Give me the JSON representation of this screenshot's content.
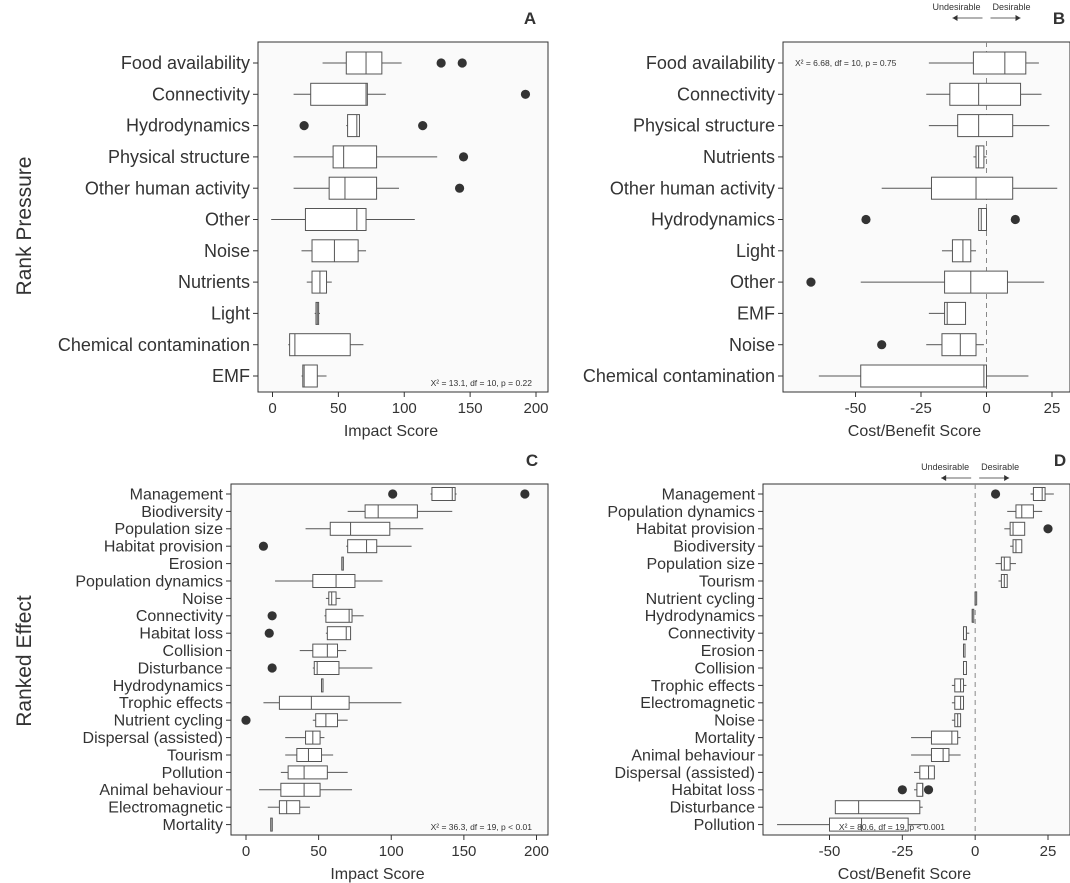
{
  "figure": {
    "row_labels": [
      "Rank Pressure",
      "Ranked Effect"
    ]
  },
  "chart_data": [
    {
      "panel": "A",
      "type": "boxplot",
      "orientation": "horizontal",
      "xlabel": "Impact Score",
      "ylabel": "Rank Pressure",
      "xlim": [
        -10,
        200
      ],
      "xticks": [
        0,
        50,
        100,
        150,
        200
      ],
      "ref_line": null,
      "annotation": "X² = 13.1, df = 10, p = 0.22",
      "items": [
        {
          "label": "Food availability",
          "whisker_low": 38,
          "q1": 56,
          "median": 71,
          "q3": 83,
          "whisker_high": 98,
          "outliers": [
            128,
            144
          ]
        },
        {
          "label": "Connectivity",
          "whisker_low": 16,
          "q1": 29,
          "median": 71,
          "q3": 72,
          "whisker_high": 86,
          "outliers": [
            192
          ]
        },
        {
          "label": "Hydrodynamics",
          "whisker_low": 56,
          "q1": 57,
          "median": 64,
          "q3": 66,
          "whisker_high": 66,
          "outliers": [
            24,
            114
          ]
        },
        {
          "label": "Physical structure",
          "whisker_low": 16,
          "q1": 46,
          "median": 54,
          "q3": 79,
          "whisker_high": 125,
          "outliers": [
            145
          ]
        },
        {
          "label": "Other human activity",
          "whisker_low": 16,
          "q1": 43,
          "median": 55,
          "q3": 79,
          "whisker_high": 96,
          "outliers": [
            142
          ]
        },
        {
          "label": "Other",
          "whisker_low": -1,
          "q1": 25,
          "median": 64,
          "q3": 71,
          "whisker_high": 108,
          "outliers": []
        },
        {
          "label": "Noise",
          "whisker_low": 22,
          "q1": 30,
          "median": 47,
          "q3": 65,
          "whisker_high": 71,
          "outliers": []
        },
        {
          "label": "Nutrients",
          "whisker_low": 26,
          "q1": 30,
          "median": 36,
          "q3": 41,
          "whisker_high": 45,
          "outliers": []
        },
        {
          "label": "Light",
          "whisker_low": 32,
          "q1": 33,
          "median": 34,
          "q3": 35,
          "whisker_high": 36,
          "outliers": []
        },
        {
          "label": "Chemical contamination",
          "whisker_low": 12,
          "q1": 13,
          "median": 17,
          "q3": 59,
          "whisker_high": 69,
          "outliers": []
        },
        {
          "label": "EMF",
          "whisker_low": 22,
          "q1": 23,
          "median": 24,
          "q3": 34,
          "whisker_high": 41,
          "outliers": []
        }
      ]
    },
    {
      "panel": "B",
      "type": "boxplot",
      "orientation": "horizontal",
      "xlabel": "Cost/Benefit Score",
      "ylabel": "",
      "xlim": [
        -70,
        30
      ],
      "xticks": [
        -50,
        -25,
        0,
        25
      ],
      "ref_line": 0,
      "direction_labels": [
        "Undesirable",
        "Desirable"
      ],
      "annotation": "X² = 6.68, df = 10, p = 0.75",
      "items": [
        {
          "label": "Food availability",
          "whisker_low": -22,
          "q1": -5,
          "median": 7,
          "q3": 15,
          "whisker_high": 20,
          "outliers": []
        },
        {
          "label": "Connectivity",
          "whisker_low": -23,
          "q1": -14,
          "median": -3,
          "q3": 13,
          "whisker_high": 21,
          "outliers": []
        },
        {
          "label": "Physical structure",
          "whisker_low": -22,
          "q1": -11,
          "median": -3,
          "q3": 10,
          "whisker_high": 24,
          "outliers": []
        },
        {
          "label": "Nutrients",
          "whisker_low": -5,
          "q1": -4,
          "median": -3,
          "q3": -1,
          "whisker_high": 0,
          "outliers": []
        },
        {
          "label": "Other human activity",
          "whisker_low": -40,
          "q1": -21,
          "median": -4,
          "q3": 10,
          "whisker_high": 27,
          "outliers": []
        },
        {
          "label": "Hydrodynamics",
          "whisker_low": -3,
          "q1": -3,
          "median": -2,
          "q3": 0,
          "whisker_high": 0,
          "outliers": [
            -46,
            11
          ]
        },
        {
          "label": "Light",
          "whisker_low": -17,
          "q1": -13,
          "median": -9,
          "q3": -6,
          "whisker_high": -4,
          "outliers": []
        },
        {
          "label": "Other",
          "whisker_low": -48,
          "q1": -16,
          "median": -6,
          "q3": 8,
          "whisker_high": 22,
          "outliers": [
            -67
          ]
        },
        {
          "label": "EMF",
          "whisker_low": -22,
          "q1": -16,
          "median": -15,
          "q3": -8,
          "whisker_high": -8,
          "outliers": []
        },
        {
          "label": "Noise",
          "whisker_low": -23,
          "q1": -17,
          "median": -10,
          "q3": -4,
          "whisker_high": -1,
          "outliers": [
            -40
          ]
        },
        {
          "label": "Chemical contamination",
          "whisker_low": -64,
          "q1": -48,
          "median": -1,
          "q3": 0,
          "whisker_high": 16,
          "outliers": []
        }
      ]
    },
    {
      "panel": "C",
      "type": "boxplot",
      "orientation": "horizontal",
      "xlabel": "Impact Score",
      "ylabel": "Ranked Effect",
      "xlim": [
        -10,
        200
      ],
      "xticks": [
        0,
        50,
        100,
        150,
        200
      ],
      "ref_line": null,
      "annotation": "X² = 36.3, df = 19, p < 0.01",
      "items": [
        {
          "label": "Management",
          "whisker_low": 127,
          "q1": 128,
          "median": 142,
          "q3": 144,
          "whisker_high": 145,
          "outliers": [
            101,
            192
          ]
        },
        {
          "label": "Biodiversity",
          "whisker_low": 70,
          "q1": 82,
          "median": 91,
          "q3": 118,
          "whisker_high": 142,
          "outliers": []
        },
        {
          "label": "Population size",
          "whisker_low": 41,
          "q1": 58,
          "median": 72,
          "q3": 99,
          "whisker_high": 122,
          "outliers": []
        },
        {
          "label": "Habitat provision",
          "whisker_low": 69,
          "q1": 70,
          "median": 83,
          "q3": 90,
          "whisker_high": 114,
          "outliers": [
            12
          ]
        },
        {
          "label": "Erosion",
          "whisker_low": 66,
          "q1": 66,
          "median": 66,
          "q3": 66,
          "whisker_high": 66,
          "outliers": []
        },
        {
          "label": "Population dynamics",
          "whisker_low": 20,
          "q1": 46,
          "median": 62,
          "q3": 75,
          "whisker_high": 94,
          "outliers": []
        },
        {
          "label": "Noise",
          "whisker_low": 55,
          "q1": 57,
          "median": 59,
          "q3": 62,
          "whisker_high": 65,
          "outliers": []
        },
        {
          "label": "Connectivity",
          "whisker_low": 54,
          "q1": 55,
          "median": 71,
          "q3": 73,
          "whisker_high": 81,
          "outliers": [
            18
          ]
        },
        {
          "label": "Habitat loss",
          "whisker_low": 55,
          "q1": 56,
          "median": 69,
          "q3": 72,
          "whisker_high": 72,
          "outliers": [
            16
          ]
        },
        {
          "label": "Collision",
          "whisker_low": 37,
          "q1": 46,
          "median": 56,
          "q3": 63,
          "whisker_high": 69,
          "outliers": []
        },
        {
          "label": "Disturbance",
          "whisker_low": 46,
          "q1": 47,
          "median": 49,
          "q3": 64,
          "whisker_high": 87,
          "outliers": [
            18
          ]
        },
        {
          "label": "Hydrodynamics",
          "whisker_low": 52,
          "q1": 52,
          "median": 52,
          "q3": 52,
          "whisker_high": 52,
          "outliers": []
        },
        {
          "label": "Trophic effects",
          "whisker_low": 12,
          "q1": 23,
          "median": 45,
          "q3": 71,
          "whisker_high": 107,
          "outliers": []
        },
        {
          "label": "Nutrient cycling",
          "whisker_low": 46,
          "q1": 48,
          "median": 55,
          "q3": 63,
          "whisker_high": 70,
          "outliers": [
            0
          ]
        },
        {
          "label": "Dispersal (assisted)",
          "whisker_low": 27,
          "q1": 41,
          "median": 46,
          "q3": 51,
          "whisker_high": 54,
          "outliers": []
        },
        {
          "label": "Tourism",
          "whisker_low": 27,
          "q1": 35,
          "median": 43,
          "q3": 52,
          "whisker_high": 60,
          "outliers": []
        },
        {
          "label": "Pollution",
          "whisker_low": 24,
          "q1": 29,
          "median": 40,
          "q3": 56,
          "whisker_high": 70,
          "outliers": []
        },
        {
          "label": "Animal behaviour",
          "whisker_low": 9,
          "q1": 24,
          "median": 40,
          "q3": 51,
          "whisker_high": 73,
          "outliers": []
        },
        {
          "label": "Electromagnetic",
          "whisker_low": 15,
          "q1": 23,
          "median": 28,
          "q3": 37,
          "whisker_high": 44,
          "outliers": []
        },
        {
          "label": "Mortality",
          "whisker_low": 17,
          "q1": 17,
          "median": 18,
          "q3": 18,
          "whisker_high": 18,
          "outliers": []
        }
      ]
    },
    {
      "panel": "D",
      "type": "boxplot",
      "orientation": "horizontal",
      "xlabel": "Cost/Benefit Score",
      "ylabel": "",
      "xlim": [
        -75,
        30
      ],
      "xticks": [
        -50,
        -25,
        0,
        25
      ],
      "ref_line": 0,
      "direction_labels": [
        "Undesirable",
        "Desirable"
      ],
      "annotation": "X² = 80.6, df = 19, p < 0.001",
      "items": [
        {
          "label": "Management",
          "whisker_low": 19,
          "q1": 20,
          "median": 23,
          "q3": 24,
          "whisker_high": 27,
          "outliers": [
            7
          ]
        },
        {
          "label": "Population dynamics",
          "whisker_low": 11,
          "q1": 14,
          "median": 16,
          "q3": 20,
          "whisker_high": 23,
          "outliers": []
        },
        {
          "label": "Habitat provision",
          "whisker_low": 10,
          "q1": 12,
          "median": 13,
          "q3": 17,
          "whisker_high": 17,
          "outliers": [
            25
          ]
        },
        {
          "label": "Biodiversity",
          "whisker_low": 12,
          "q1": 13,
          "median": 14,
          "q3": 16,
          "whisker_high": 16,
          "outliers": []
        },
        {
          "label": "Population size",
          "whisker_low": 7,
          "q1": 9,
          "median": 10,
          "q3": 12,
          "whisker_high": 14,
          "outliers": []
        },
        {
          "label": "Tourism",
          "whisker_low": 8,
          "q1": 9,
          "median": 10,
          "q3": 11,
          "whisker_high": 11,
          "outliers": []
        },
        {
          "label": "Nutrient cycling",
          "whisker_low": 0,
          "q1": 0,
          "median": 0,
          "q3": 0,
          "whisker_high": 0,
          "outliers": []
        },
        {
          "label": "Hydrodynamics",
          "whisker_low": -1,
          "q1": -1,
          "median": -1,
          "q3": -1,
          "whisker_high": -1,
          "outliers": []
        },
        {
          "label": "Connectivity",
          "whisker_low": -4,
          "q1": -4,
          "median": -3,
          "q3": -3,
          "whisker_high": -2,
          "outliers": []
        },
        {
          "label": "Erosion",
          "whisker_low": -4,
          "q1": -4,
          "median": -4,
          "q3": -4,
          "whisker_high": -4,
          "outliers": []
        },
        {
          "label": "Collision",
          "whisker_low": -4,
          "q1": -4,
          "median": -4,
          "q3": -3,
          "whisker_high": -3,
          "outliers": []
        },
        {
          "label": "Trophic effects",
          "whisker_low": -8,
          "q1": -7,
          "median": -5,
          "q3": -4,
          "whisker_high": -3,
          "outliers": []
        },
        {
          "label": "Electromagnetic",
          "whisker_low": -8,
          "q1": -7,
          "median": -5,
          "q3": -4,
          "whisker_high": -4,
          "outliers": []
        },
        {
          "label": "Noise",
          "whisker_low": -8,
          "q1": -7,
          "median": -6,
          "q3": -5,
          "whisker_high": -5,
          "outliers": []
        },
        {
          "label": "Mortality",
          "whisker_low": -22,
          "q1": -15,
          "median": -8,
          "q3": -6,
          "whisker_high": -5,
          "outliers": []
        },
        {
          "label": "Animal behaviour",
          "whisker_low": -22,
          "q1": -15,
          "median": -11,
          "q3": -9,
          "whisker_high": -5,
          "outliers": []
        },
        {
          "label": "Dispersal (assisted)",
          "whisker_low": -21,
          "q1": -19,
          "median": -16,
          "q3": -14,
          "whisker_high": -14,
          "outliers": []
        },
        {
          "label": "Habitat loss",
          "whisker_low": -21,
          "q1": -20,
          "median": -18,
          "q3": -18,
          "whisker_high": -18,
          "outliers": [
            -25,
            -16
          ]
        },
        {
          "label": "Disturbance",
          "whisker_low": -48,
          "q1": -48,
          "median": -40,
          "q3": -19,
          "whisker_high": -18,
          "outliers": []
        },
        {
          "label": "Pollution",
          "whisker_low": -68,
          "q1": -50,
          "median": -39,
          "q3": -23,
          "whisker_high": -17,
          "outliers": []
        }
      ]
    }
  ]
}
